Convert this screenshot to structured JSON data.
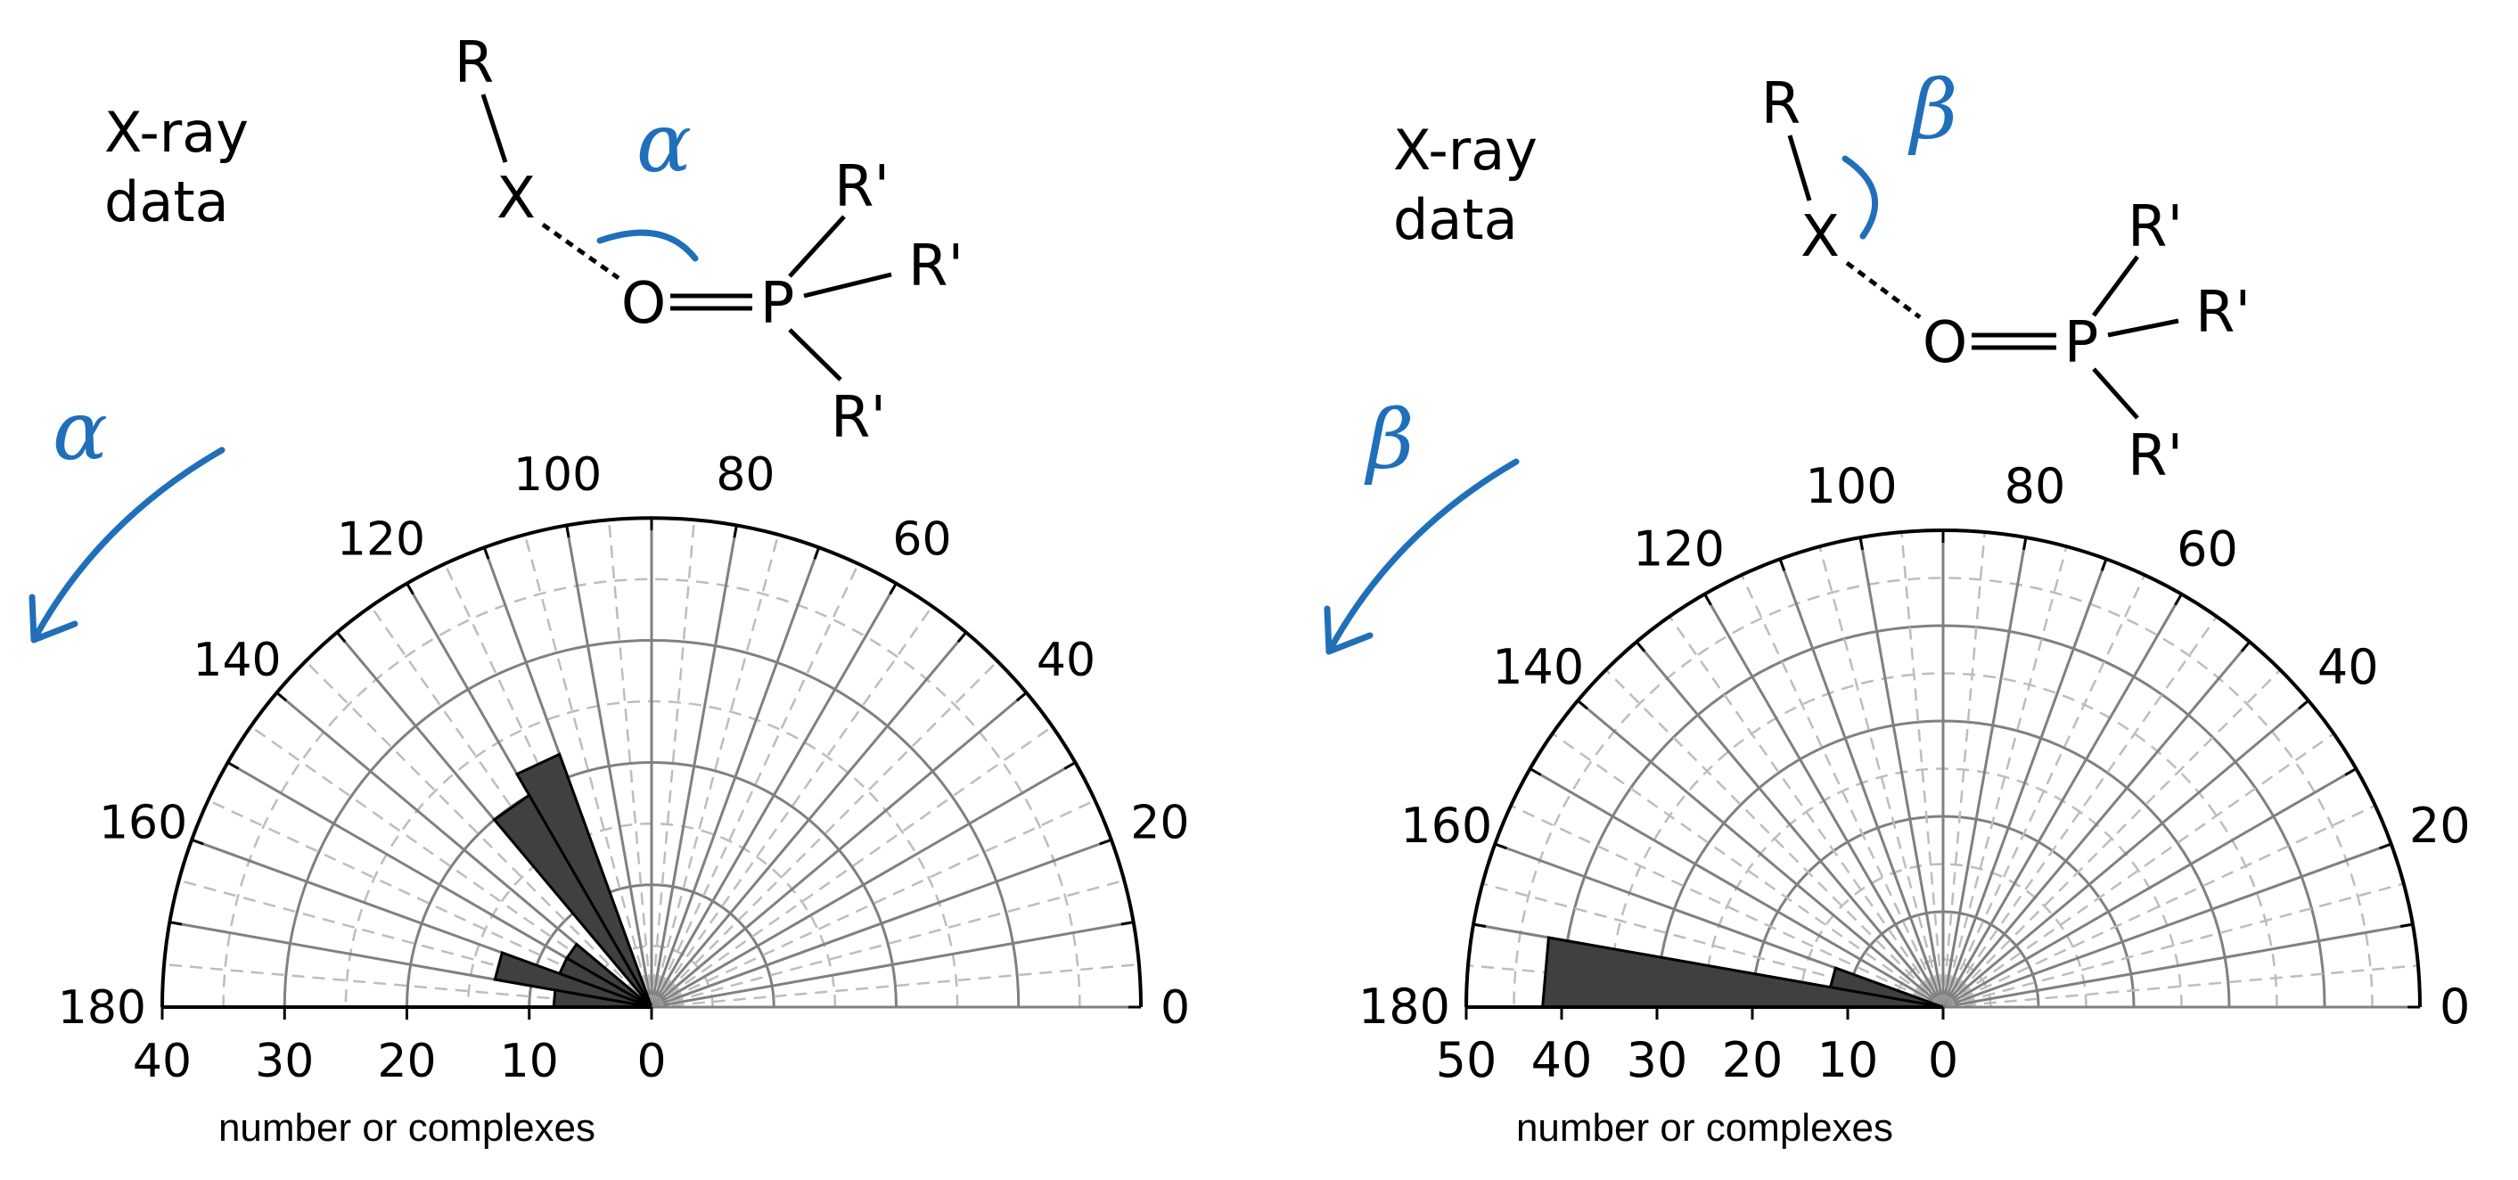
{
  "colors": {
    "accent": "#1f6fba",
    "bar": "#404040",
    "grid_solid": "#808080",
    "grid_dashed": "#bdbdbd",
    "axis": "#000000"
  },
  "chart_data": [
    {
      "type": "polar-histogram",
      "panel_label": "X-ray\ndata",
      "angle_symbol": "α",
      "angle_ticks": [
        "0",
        "20",
        "40",
        "60",
        "80",
        "100",
        "120",
        "140",
        "160",
        "180"
      ],
      "radial_ticks": [
        "40",
        "30",
        "20",
        "10",
        "0"
      ],
      "radial_max": 40,
      "xlabel": "number or complexes",
      "structure_labels": {
        "R": "R",
        "X": "X",
        "O": "O",
        "P": "P",
        "R1": "R'",
        "R2": "R'",
        "R3": "R'"
      },
      "bins": [
        {
          "angle_start": 110,
          "angle_end": 120,
          "count": 22
        },
        {
          "angle_start": 120,
          "angle_end": 130,
          "count": 20
        },
        {
          "angle_start": 140,
          "angle_end": 150,
          "count": 8
        },
        {
          "angle_start": 150,
          "angle_end": 160,
          "count": 8
        },
        {
          "angle_start": 160,
          "angle_end": 170,
          "count": 13
        },
        {
          "angle_start": 170,
          "angle_end": 180,
          "count": 8
        }
      ]
    },
    {
      "type": "polar-histogram",
      "panel_label": "X-ray\ndata",
      "angle_symbol": "β",
      "angle_ticks": [
        "0",
        "20",
        "40",
        "60",
        "80",
        "100",
        "120",
        "140",
        "160",
        "180"
      ],
      "radial_ticks": [
        "50",
        "40",
        "30",
        "20",
        "10",
        "0"
      ],
      "radial_max": 50,
      "xlabel": "number or complexes",
      "structure_labels": {
        "R": "R",
        "X": "X",
        "O": "O",
        "P": "P",
        "R1": "R'",
        "R2": "R'",
        "R3": "R'"
      },
      "bins": [
        {
          "angle_start": 160,
          "angle_end": 170,
          "count": 12
        },
        {
          "angle_start": 170,
          "angle_end": 180,
          "count": 42
        }
      ]
    }
  ]
}
